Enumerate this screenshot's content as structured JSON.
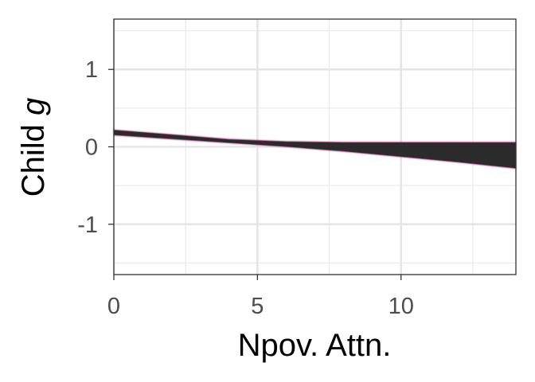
{
  "chart_data": {
    "type": "area",
    "xlabel": "Npov. Attn.",
    "ylabel_main": "Child ",
    "ylabel_italic": "g",
    "xlim": [
      0,
      14
    ],
    "ylim": [
      -1.65,
      1.65
    ],
    "x_ticks": [
      0,
      5,
      10
    ],
    "x_tick_labels": [
      "0",
      "5",
      "10"
    ],
    "y_ticks": [
      -1,
      0,
      1
    ],
    "y_tick_labels": [
      "-1",
      "0",
      "1"
    ],
    "grid": true,
    "series": [
      {
        "x": [
          0,
          2,
          4,
          6,
          8,
          10,
          12,
          14
        ],
        "lower": [
          0.15,
          0.1,
          0.05,
          0.0,
          -0.06,
          -0.13,
          -0.2,
          -0.28
        ],
        "upper": [
          0.22,
          0.16,
          0.1,
          0.07,
          0.06,
          0.06,
          0.06,
          0.06
        ],
        "fill_color": "#2b2b2b",
        "edge_color": "#c0609a"
      }
    ]
  }
}
